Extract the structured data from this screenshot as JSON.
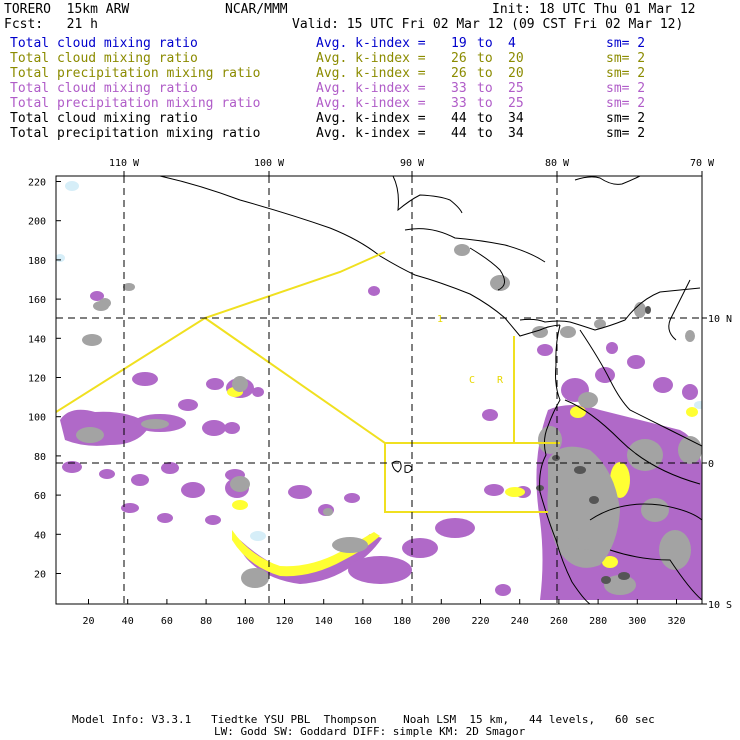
{
  "header": {
    "model": "TORERO  15km ARW",
    "center": "NCAR/MMM",
    "init": "Init: 18 UTC Thu 01 Mar 12",
    "fcst": "Fcst:   21 h",
    "valid": "Valid: 15 UTC Fri 02 Mar 12 (09 CST Fri 02 Mar 12)"
  },
  "legend": [
    {
      "field": "Total cloud mixing ratio",
      "avg": "Avg. k-index =",
      "from": "19",
      "to": "to",
      "end": "4",
      "sm": "sm= 2",
      "color": "#0000cc"
    },
    {
      "field": "Total cloud mixing ratio",
      "avg": "Avg. k-index =",
      "from": "26",
      "to": "to",
      "end": "20",
      "sm": "sm= 2",
      "color": "#8b8b00"
    },
    {
      "field": "Total precipitation mixing ratio",
      "avg": "Avg. k-index =",
      "from": "26",
      "to": "to",
      "end": "20",
      "sm": "sm= 2",
      "color": "#8b8b00"
    },
    {
      "field": "Total cloud mixing ratio",
      "avg": "Avg. k-index =",
      "from": "33",
      "to": "to",
      "end": "25",
      "sm": "sm= 2",
      "color": "#b05cc8"
    },
    {
      "field": "Total precipitation mixing ratio",
      "avg": "Avg. k-index =",
      "from": "33",
      "to": "to",
      "end": "25",
      "sm": "sm= 2",
      "color": "#b05cc8"
    },
    {
      "field": "Total cloud mixing ratio",
      "avg": "Avg. k-index =",
      "from": "44",
      "to": "to",
      "end": "34",
      "sm": "sm= 2",
      "color": "#000000"
    },
    {
      "field": "Total precipitation mixing ratio",
      "avg": "Avg. k-index =",
      "from": "44",
      "to": "to",
      "end": "34",
      "sm": "sm= 2",
      "color": "#000000"
    }
  ],
  "map": {
    "lon_labels": [
      "110 W",
      "100 W",
      "90 W",
      "80 W",
      "70 W"
    ],
    "lat_labels": [
      "10 N",
      "0",
      "10 S"
    ],
    "y_ticks": [
      "220",
      "200",
      "180",
      "160",
      "140",
      "120",
      "100",
      "80",
      "60",
      "40",
      "20"
    ],
    "x_ticks": [
      "20",
      "40",
      "60",
      "80",
      "100",
      "120",
      "140",
      "160",
      "180",
      "200",
      "220",
      "240",
      "260",
      "280",
      "300",
      "320"
    ],
    "inner_labels": [
      "1",
      "C",
      "R"
    ],
    "colors": {
      "purple": "#b069c8",
      "yellow": "#ffff33",
      "gray": "#a0a0a0",
      "dark": "#555555",
      "box": "#f0e020",
      "cyan": "#d8f0f8"
    }
  },
  "footer": {
    "line1": "Model Info: V3.3.1   Tiedtke YSU PBL  Thompson    Noah LSM  15 km,   44 levels,   60 sec",
    "line2": "LW: Godd SW: Goddard DIFF: simple KM: 2D Smagor"
  }
}
